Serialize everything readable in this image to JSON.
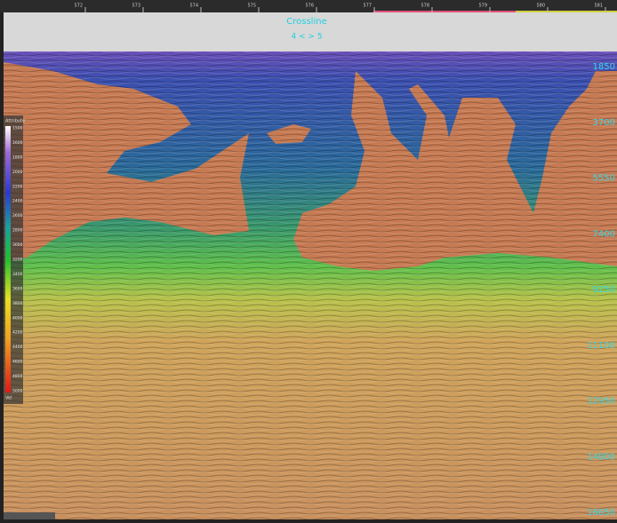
{
  "ruler": {
    "labels": [
      "572",
      "573",
      "574",
      "575",
      "576",
      "577",
      "578",
      "579",
      "580",
      "581"
    ]
  },
  "section": {
    "title": "Crossline",
    "subtitle": "4 < > 5"
  },
  "depth_labels": [
    "1850",
    "3700",
    "5550",
    "7400",
    "9250",
    "11100",
    "12950",
    "14800",
    "16650"
  ],
  "colorbar": {
    "title": "Attribute",
    "labels": [
      "1500",
      "1600",
      "1800",
      "2000",
      "2200",
      "2400",
      "2600",
      "2800",
      "3000",
      "3200",
      "3400",
      "3600",
      "3800",
      "4000",
      "4200",
      "4400",
      "4600",
      "4800",
      "5000"
    ],
    "unit": "Vel"
  }
}
